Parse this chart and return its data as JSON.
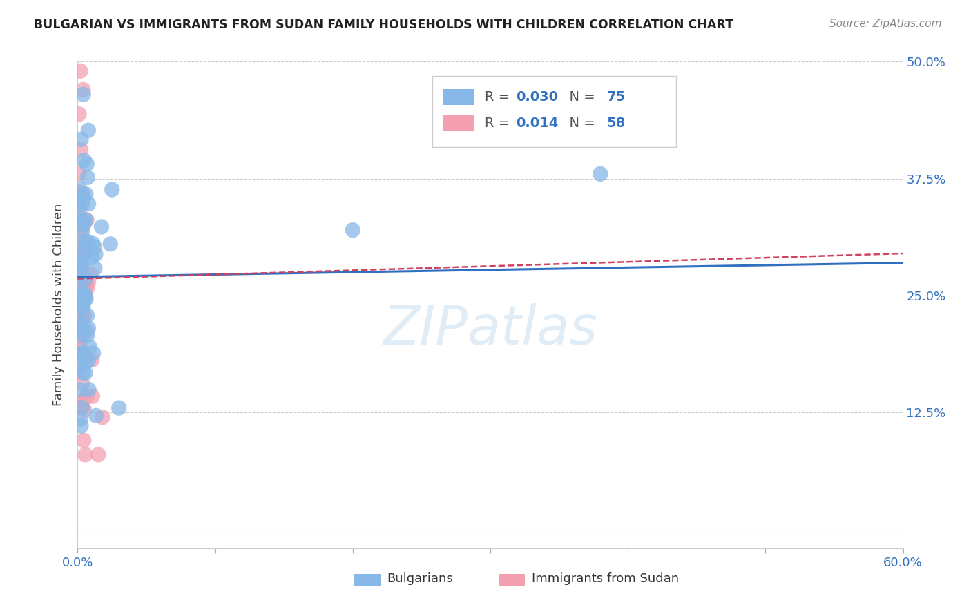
{
  "title": "BULGARIAN VS IMMIGRANTS FROM SUDAN FAMILY HOUSEHOLDS WITH CHILDREN CORRELATION CHART",
  "source": "Source: ZipAtlas.com",
  "ylabel": "Family Households with Children",
  "x_min": 0.0,
  "x_max": 0.6,
  "y_min": 0.0,
  "y_max": 0.5,
  "x_ticks": [
    0.0,
    0.1,
    0.2,
    0.3,
    0.4,
    0.5,
    0.6
  ],
  "x_tick_labels": [
    "0.0%",
    "",
    "",
    "",
    "",
    "",
    "60.0%"
  ],
  "y_ticks": [
    0.0,
    0.125,
    0.25,
    0.375,
    0.5
  ],
  "y_tick_labels_right": [
    "",
    "12.5%",
    "25.0%",
    "37.5%",
    "50.0%"
  ],
  "bulgarian_color": "#87b8e8",
  "sudan_color": "#f4a0b0",
  "trend_bulgarian_color": "#3070c0",
  "trend_sudan_color": "#d04060",
  "R_bulgarian": 0.03,
  "N_bulgarian": 75,
  "R_sudan": 0.014,
  "N_sudan": 58,
  "watermark": "ZIPatlas",
  "legend_label_1": "Bulgarians",
  "legend_label_2": "Immigrants from Sudan",
  "trend_b_x0": 0.0,
  "trend_b_y0": 0.27,
  "trend_b_x1": 0.6,
  "trend_b_y1": 0.285,
  "trend_s_x0": 0.0,
  "trend_s_y0": 0.268,
  "trend_s_x1": 0.6,
  "trend_s_y1": 0.295
}
